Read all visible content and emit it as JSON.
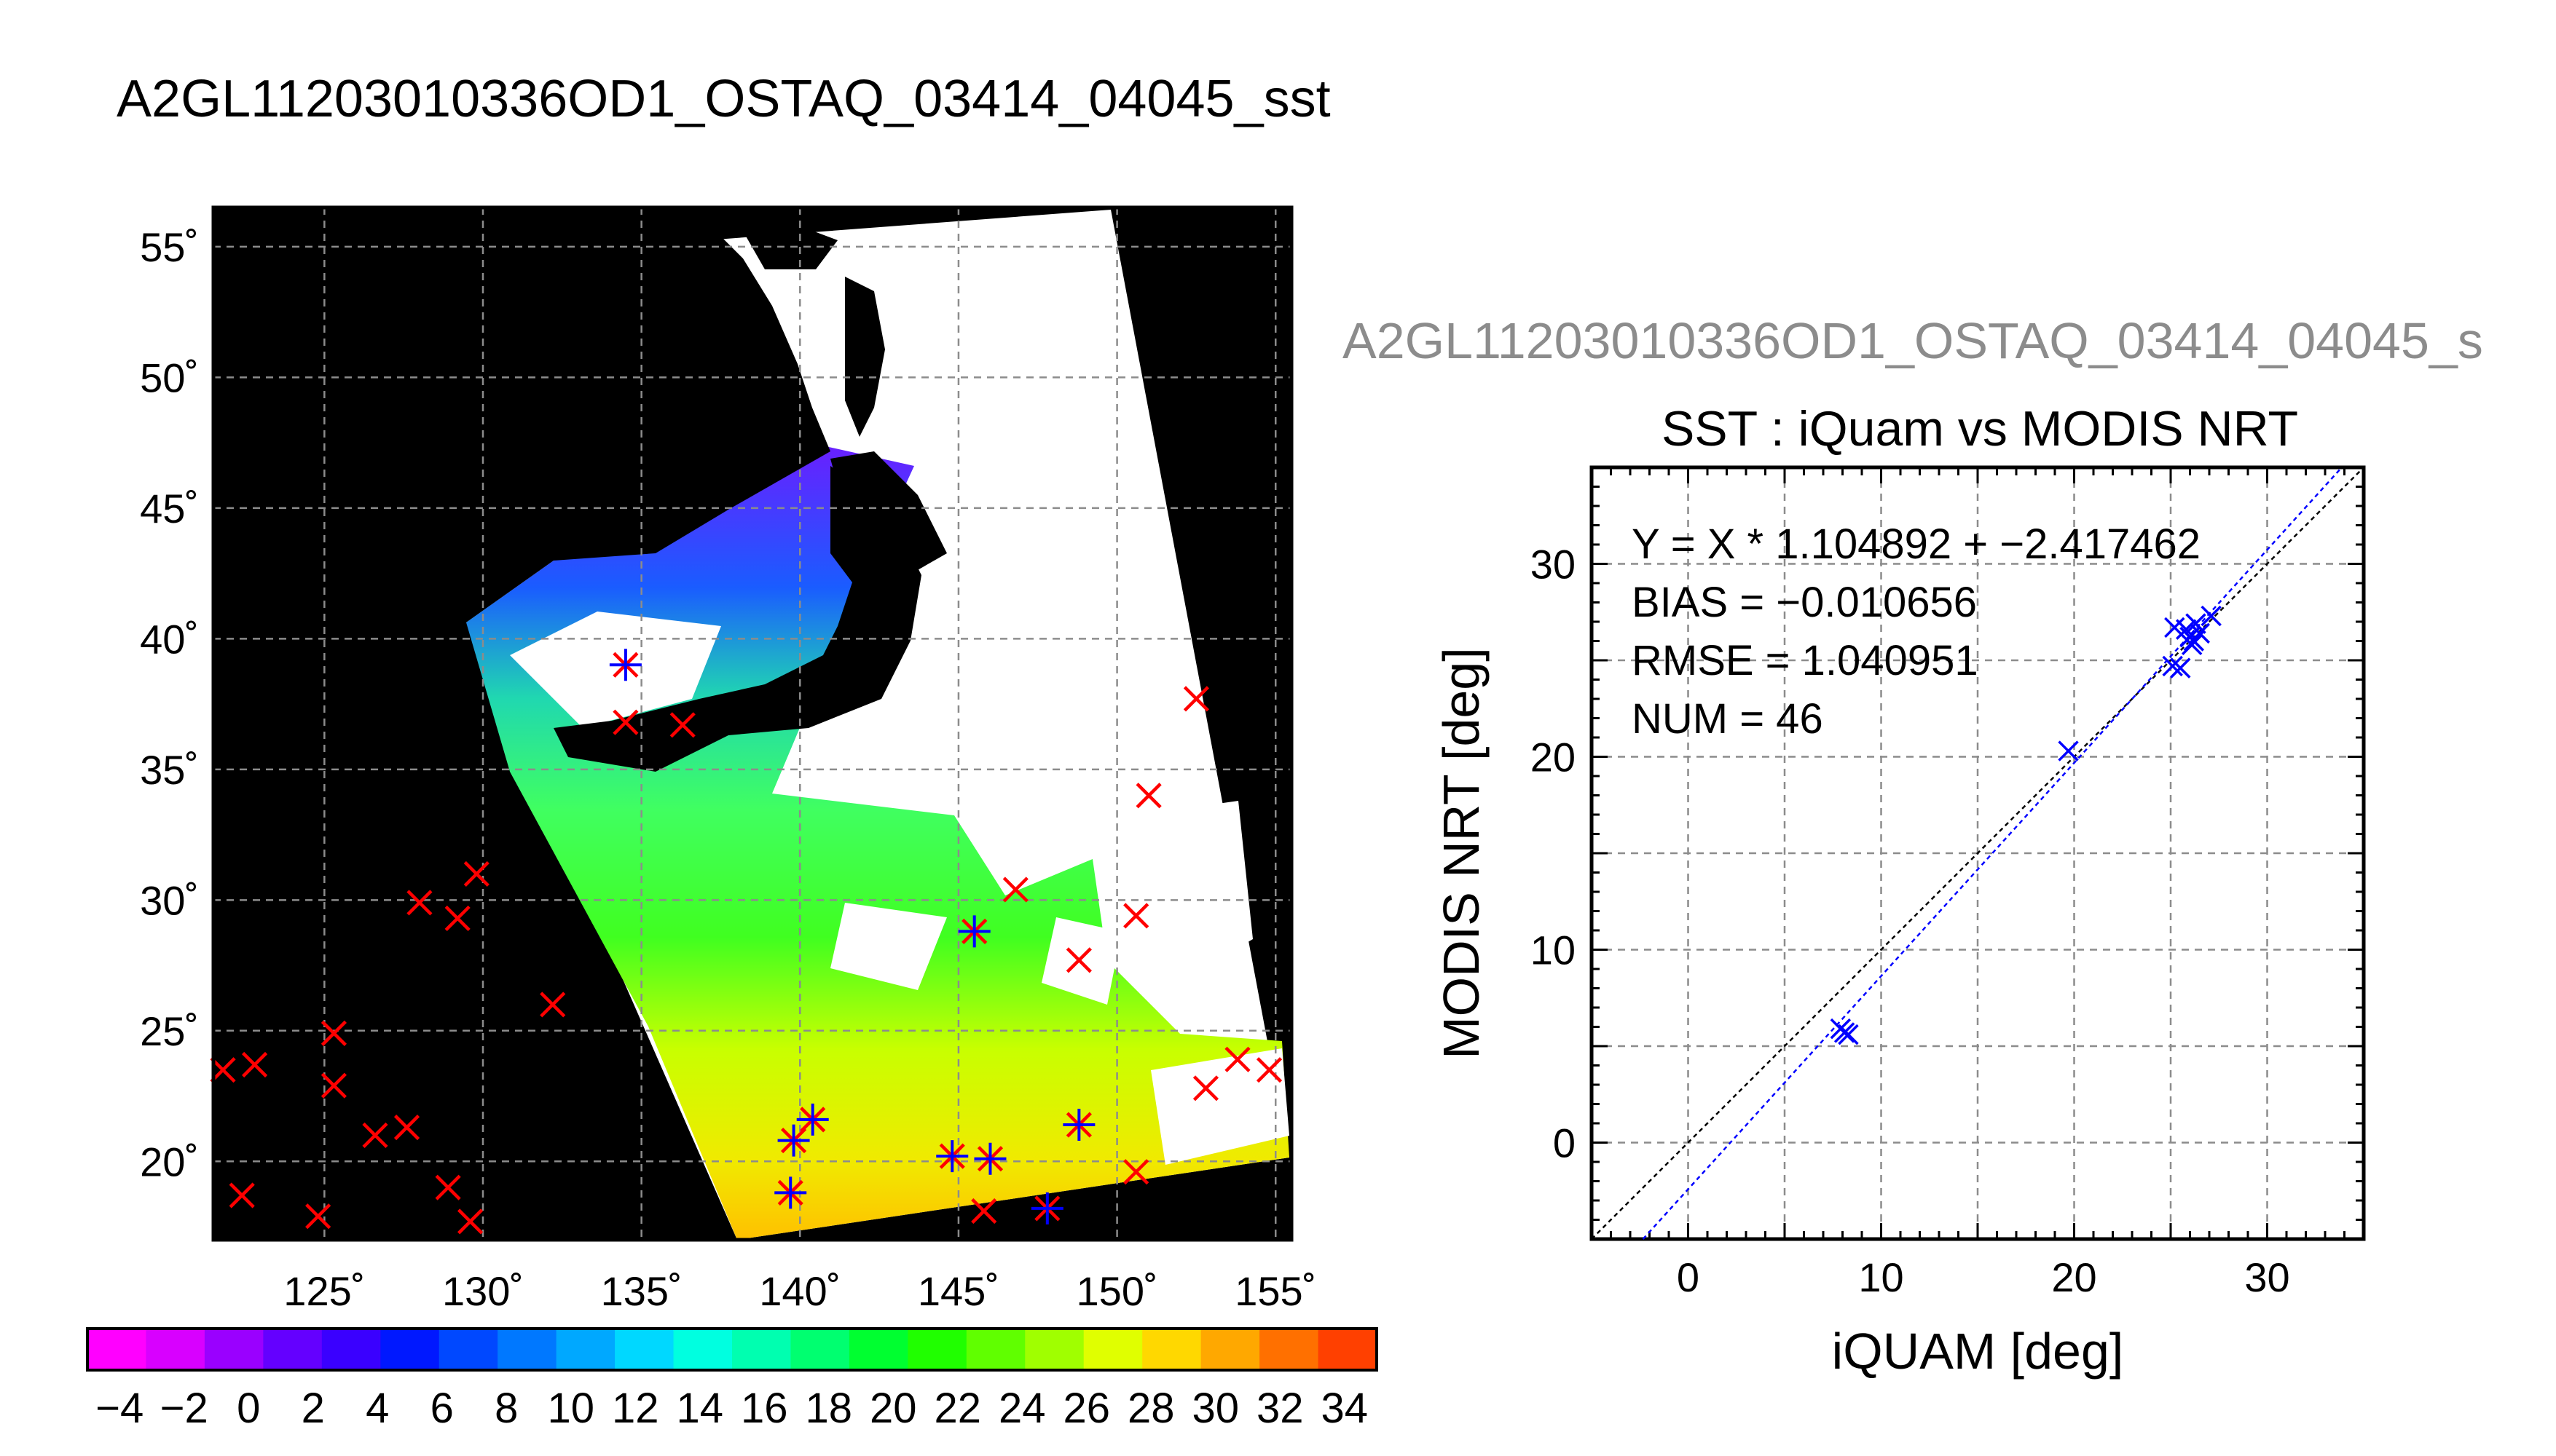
{
  "title": "A2GL11203010336OD1_OSTAQ_03414_04045_sst",
  "subtitle": "A2GL11203010336OD1_OSTAQ_03414_04045_s",
  "colors": {
    "land": "#000000",
    "cloud": "#ffffff",
    "marker_satellite": "#ff0000",
    "marker_insitu": "#0000ff",
    "grid": "#8c8c8c"
  },
  "chart_data": [
    {
      "type": "map",
      "lon_ticks": [
        "125˚",
        "130˚",
        "135˚",
        "140˚",
        "145˚",
        "150˚",
        "155˚"
      ],
      "lat_ticks": [
        "55˚",
        "50˚",
        "45˚",
        "40˚",
        "35˚",
        "30˚",
        "25˚",
        "20˚"
      ],
      "lon_range": [
        121.5,
        155.5
      ],
      "lat_range": [
        17,
        56.5
      ],
      "grid": true,
      "red_markers": [
        [
          134.5,
          39.0
        ],
        [
          134.5,
          36.8
        ],
        [
          136.3,
          36.7
        ],
        [
          152.5,
          37.7
        ],
        [
          151.0,
          34.0
        ],
        [
          129.8,
          31.0
        ],
        [
          128.0,
          29.9
        ],
        [
          129.2,
          29.3
        ],
        [
          146.8,
          30.4
        ],
        [
          145.5,
          28.8
        ],
        [
          150.6,
          29.4
        ],
        [
          148.8,
          27.7
        ],
        [
          132.2,
          26.0
        ],
        [
          125.3,
          24.9
        ],
        [
          121.8,
          23.5
        ],
        [
          122.8,
          23.7
        ],
        [
          125.3,
          22.9
        ],
        [
          153.8,
          23.9
        ],
        [
          154.8,
          23.5
        ],
        [
          152.8,
          22.8
        ],
        [
          127.6,
          21.3
        ],
        [
          126.6,
          21.0
        ],
        [
          140.4,
          21.6
        ],
        [
          139.8,
          20.8
        ],
        [
          148.8,
          21.4
        ],
        [
          144.8,
          20.2
        ],
        [
          146.0,
          20.1
        ],
        [
          150.6,
          19.6
        ],
        [
          128.9,
          19.0
        ],
        [
          122.4,
          18.7
        ],
        [
          139.7,
          18.8
        ],
        [
          124.8,
          17.9
        ],
        [
          129.6,
          17.7
        ],
        [
          145.8,
          18.1
        ],
        [
          147.8,
          18.2
        ]
      ],
      "blue_markers": [
        [
          134.5,
          39.0
        ],
        [
          145.5,
          28.8
        ],
        [
          140.4,
          21.6
        ],
        [
          139.8,
          20.8
        ],
        [
          148.8,
          21.4
        ],
        [
          144.8,
          20.2
        ],
        [
          146.0,
          20.1
        ],
        [
          139.7,
          18.8
        ],
        [
          147.8,
          18.2
        ]
      ]
    },
    {
      "type": "colorbar",
      "tick_labels": [
        "−4",
        "−2",
        "0",
        "2",
        "4",
        "6",
        "8",
        "10",
        "12",
        "14",
        "16",
        "18",
        "20",
        "22",
        "24",
        "26",
        "28",
        "30",
        "32",
        "34"
      ],
      "range": [
        -5,
        35
      ],
      "step": 2,
      "colors": [
        "#ff00ff",
        "#d800ff",
        "#9a00ff",
        "#6400ff",
        "#3a00ff",
        "#0018ff",
        "#0048ff",
        "#0078ff",
        "#00a8ff",
        "#00d8ff",
        "#00ffe0",
        "#00ffb0",
        "#00ff70",
        "#00ff30",
        "#20ff00",
        "#60ff00",
        "#a0ff00",
        "#e0ff00",
        "#ffd800",
        "#ffa800",
        "#ff7000",
        "#ff4000"
      ]
    },
    {
      "type": "scatter",
      "title": "SST : iQuam vs MODIS NRT",
      "xlabel": "iQUAM [deg]",
      "ylabel": "MODIS NRT [deg]",
      "xlim": [
        -5,
        35
      ],
      "ylim": [
        -5,
        35
      ],
      "x_ticks": [
        "0",
        "10",
        "20",
        "30"
      ],
      "y_ticks": [
        "0",
        "10",
        "20",
        "30"
      ],
      "grid": true,
      "annotations": [
        "Y = X * 1.104892 + −2.417462",
        "BIAS = −0.010656",
        "RMSE = 1.040951",
        "NUM = 46"
      ],
      "fit": {
        "slope": 1.104892,
        "intercept": -2.417462
      },
      "points": [
        [
          7.9,
          5.9
        ],
        [
          8.1,
          5.7
        ],
        [
          8.3,
          5.6
        ],
        [
          19.7,
          20.3
        ],
        [
          25.1,
          24.7
        ],
        [
          25.5,
          24.6
        ],
        [
          25.2,
          26.7
        ],
        [
          25.8,
          26.6
        ],
        [
          26.0,
          26.2
        ],
        [
          26.2,
          26.0
        ],
        [
          26.1,
          25.8
        ],
        [
          26.5,
          26.4
        ],
        [
          26.3,
          26.9
        ],
        [
          27.1,
          27.3
        ]
      ]
    }
  ]
}
